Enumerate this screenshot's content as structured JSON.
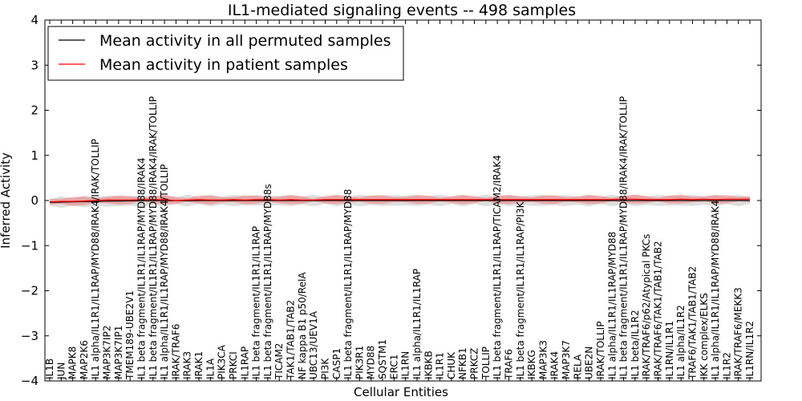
{
  "chart_data": {
    "type": "line",
    "title": "IL1-mediated signaling events -- 498 samples",
    "xlabel": "Cellular Entities",
    "ylabel": "Inferred Activity",
    "ylim": [
      -4,
      4
    ],
    "yticks": [
      -4,
      -3,
      -2,
      -1,
      0,
      1,
      2,
      3,
      4
    ],
    "ytick_labels": [
      "−4",
      "−3",
      "−2",
      "−1",
      "0",
      "1",
      "2",
      "3",
      "4"
    ],
    "grid": false,
    "legend_position": "top-left",
    "categories": [
      "IL1B",
      "JUN",
      "MAPK8",
      "MAP2K6",
      "IL1 alpha/IL1R1/IL1RAP/MYD88/IRAK4/IRAK/TOLLIP",
      "MAP3K7IP2",
      "MAP3K7IP1",
      "TMEM189-UBE2V1",
      "IL1 beta fragment/IL1R1/IL1RAP/MYD88/IRAK4",
      "IL1 beta fragment/IL1R1/IL1RAP/MYD88/IRAK4/IRAK/TOLLIP",
      "IL1 alpha/IL1R1/IL1RAP/MYD88/IRAK4/TOLLIP",
      "IRAK/TRAF6",
      "IRAK3",
      "IRAK1",
      "IL1A",
      "PIK3CA",
      "PRKCI",
      "IL1RAP",
      "IL1 beta fragment/IL1R1/IL1RAP",
      "IL1 beta fragment/IL1R1/IL1RAP/MYD88s",
      "TICAM2",
      "TAK1/TAB1/TAB2",
      "NF kappa B1 p50/RelA",
      "UBC13/UEV1A",
      "PI3K",
      "CASP1",
      "IL1 beta fragment/IL1R1/IL1RAP/MYD88",
      "PIK3R1",
      "MYD88",
      "SQSTM1",
      "ERC1",
      "IL1RN",
      "IL1 alpha/IL1R1/IL1RAP",
      "IKBKB",
      "IL1R1",
      "CHUK",
      "NFKB1",
      "PRKCZ",
      "TOLLIP",
      "IL1 beta fragment/IL1R1/IL1RAP/TICAM2/IRAK4",
      "TRAF6",
      "IL1 beta fragment/IL1R1/IL1RAP/PI3K",
      "IKBKG",
      "MAP3K3",
      "IRAK4",
      "MAP3K7",
      "RELA",
      "UBE2N",
      "IRAK/TOLLIP",
      "IL1 alpha/IL1R1/IL1RAP/MYD88",
      "IL1 beta fragment/IL1R1/IL1RAP/MYD88/IRAK4/IRAK/TOLLIP",
      "IL1 beta/IL1R2",
      "IRAK/TRAF6/p62/Atypical PKCs",
      "IRAK/TRAF6/TAK1/TAB1/TAB2",
      "IL1RN/IL1R1",
      "IL1 alpha/IL1R2",
      "TRAF6/TAK1/TAB1/TAB2",
      "IKK complex/ELKS",
      "IL1 alpha/IL1R1/IL1RAP/MYD88/IRAK4",
      "IL1R2",
      "IRAK/TRAF6/MEKK3",
      "IL1RN/IL1R2"
    ],
    "series": [
      {
        "name": "Mean activity in all permuted samples",
        "color": "#000000",
        "values": [
          -0.04,
          -0.035,
          -0.03,
          -0.025,
          -0.02,
          -0.015,
          -0.01,
          -0.008,
          -0.006,
          -0.004,
          -0.003,
          -0.002,
          -0.001,
          0,
          0,
          0,
          0,
          0,
          0,
          0,
          0,
          0,
          0,
          0,
          0,
          0,
          0,
          0,
          0,
          0,
          0,
          0,
          0,
          0,
          0,
          0,
          0,
          0,
          0,
          0,
          0,
          0,
          0,
          0,
          0,
          0,
          0,
          0,
          0,
          0,
          0,
          0,
          0,
          0,
          0,
          0,
          0,
          0,
          0,
          0,
          0,
          0
        ]
      },
      {
        "name": "Mean activity in patient samples",
        "color": "#ff0000",
        "values": [
          -0.03,
          -0.02,
          -0.02,
          -0.01,
          0,
          0.01,
          0.01,
          0.01,
          0.02,
          0.02,
          0.02,
          0,
          0.01,
          0.02,
          0.01,
          0.01,
          0.02,
          0.01,
          0.02,
          0.02,
          0.01,
          0.02,
          0.01,
          0.01,
          0.02,
          0.02,
          0.02,
          0.02,
          0.02,
          0.02,
          0.02,
          0.02,
          0.02,
          0.02,
          0.02,
          0.02,
          0.02,
          0.02,
          0.02,
          0.02,
          0.02,
          0.02,
          0.02,
          0.02,
          0.02,
          0.02,
          0.02,
          0.02,
          0.02,
          0.02,
          0.03,
          0.03,
          0.02,
          0.02,
          0.02,
          0.03,
          0.02,
          0.03,
          0.02,
          0.03,
          0.03,
          0.03
        ]
      }
    ]
  }
}
